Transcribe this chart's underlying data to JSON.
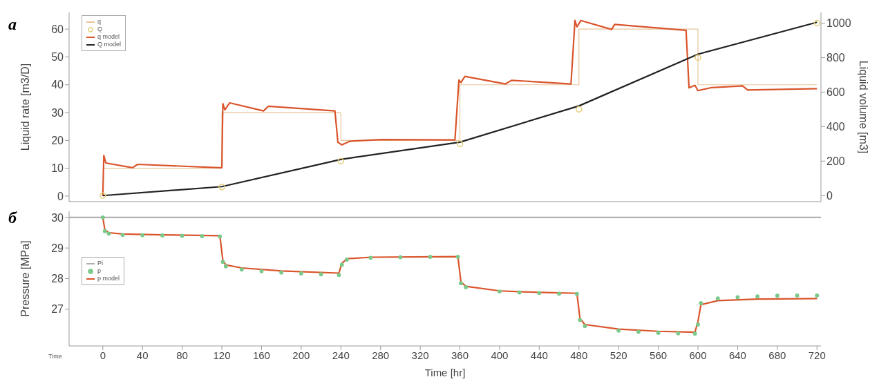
{
  "chart_data": [
    {
      "type": "line",
      "xlim": [
        -34,
        724
      ],
      "xticks": [
        0,
        40,
        80,
        120,
        160,
        200,
        240,
        280,
        320,
        360,
        400,
        440,
        480,
        520,
        560,
        600,
        640,
        680,
        720
      ],
      "ylim": [
        -2,
        66
      ],
      "yticks": [
        0,
        10,
        20,
        30,
        40,
        50,
        60
      ],
      "y2lim": [
        -35,
        1062
      ],
      "y2ticks": [
        0,
        200,
        400,
        600,
        800,
        1000
      ],
      "ylabel": "Liquid rate [m3/D]",
      "y2label": "Liquid volume [m3]",
      "tick_labels": "y",
      "legend": "top left",
      "annotations": [
        "а"
      ],
      "series": [
        {
          "name": "q",
          "type": "step",
          "color": "#e8c49a",
          "x": [
            0,
            120,
            240,
            360,
            480,
            600,
            720
          ],
          "values": [
            10,
            30,
            20,
            40,
            60,
            40,
            40
          ]
        },
        {
          "name": "Q",
          "type": "scatter",
          "marker": "circle",
          "axis": "y2",
          "color": "#e3cf7a",
          "x": [
            0,
            120,
            240,
            360,
            480,
            600,
            720
          ],
          "values": [
            0,
            50,
            200,
            300,
            500,
            800,
            1000
          ]
        },
        {
          "name": "q model",
          "type": "line",
          "color": "#d9542a",
          "x": [
            0,
            1,
            3,
            30,
            35,
            117,
            120,
            121,
            123,
            128,
            162,
            167,
            234,
            237,
            241,
            249,
            281,
            355,
            359,
            361,
            365,
            406,
            412,
            472,
            476,
            478,
            482,
            513,
            516,
            588,
            591,
            597,
            600,
            614,
            645,
            650,
            720
          ],
          "values": [
            0,
            14.6,
            11.9,
            10.2,
            11.4,
            10.2,
            10.2,
            33.2,
            31,
            33.5,
            30.6,
            32.3,
            30.6,
            19.3,
            18.4,
            19.7,
            20.3,
            20.2,
            41.7,
            40.8,
            43,
            40.3,
            41.6,
            40.3,
            63.1,
            60.8,
            63.1,
            59.9,
            61.7,
            59.6,
            38.9,
            39.8,
            37.9,
            39,
            39.6,
            38.1,
            38.6
          ]
        },
        {
          "name": "Q model",
          "type": "line",
          "axis": "y2",
          "color": "#222222",
          "x": [
            0,
            120,
            240,
            360,
            480,
            600,
            720
          ],
          "values": [
            0,
            52,
            210,
            310,
            520,
            820,
            1005
          ]
        }
      ]
    },
    {
      "type": "line",
      "xlim": [
        -34,
        724
      ],
      "xticks": [
        0,
        40,
        80,
        120,
        160,
        200,
        240,
        280,
        320,
        360,
        400,
        440,
        480,
        520,
        560,
        600,
        640,
        680,
        720
      ],
      "ylim": [
        25.8,
        30.2
      ],
      "yticks": [
        27,
        28,
        29,
        30
      ],
      "xlabel": "Time [hr]",
      "ylabel": "Pressure [MPa]",
      "legend": "top left",
      "annotations": [
        "б",
        "Time"
      ],
      "series": [
        {
          "name": "Pi",
          "type": "line",
          "color": "#b0b0b0",
          "x": [
            -34,
            724
          ],
          "values": [
            30,
            30
          ]
        },
        {
          "name": "p",
          "type": "scatter",
          "marker": "circle",
          "color": "#7ac98a",
          "x": [
            0,
            2,
            6,
            20,
            40,
            60,
            80,
            100,
            118,
            121,
            124,
            140,
            160,
            180,
            200,
            220,
            238,
            241,
            246,
            270,
            300,
            330,
            358,
            361,
            366,
            400,
            420,
            440,
            460,
            478,
            481,
            486,
            520,
            540,
            560,
            580,
            597,
            600,
            603,
            620,
            640,
            660,
            680,
            700,
            720
          ],
          "values": [
            30,
            29.55,
            29.47,
            29.43,
            29.42,
            29.41,
            29.4,
            29.39,
            29.38,
            28.55,
            28.4,
            28.3,
            28.24,
            28.2,
            28.17,
            28.14,
            28.12,
            28.45,
            28.62,
            28.68,
            28.7,
            28.71,
            28.71,
            27.85,
            27.72,
            27.58,
            27.55,
            27.53,
            27.51,
            27.5,
            26.65,
            26.45,
            26.3,
            26.26,
            26.23,
            26.21,
            26.2,
            26.5,
            27.2,
            27.35,
            27.39,
            27.42,
            27.44,
            27.45,
            27.45
          ]
        },
        {
          "name": "p model",
          "type": "line",
          "color": "#d9542a",
          "x": [
            0,
            2,
            6,
            20,
            60,
            118,
            121,
            124,
            140,
            180,
            238,
            241,
            246,
            270,
            358,
            361,
            366,
            400,
            440,
            478,
            481,
            486,
            520,
            560,
            597,
            600,
            603,
            620,
            660,
            720
          ],
          "values": [
            30,
            29.6,
            29.5,
            29.46,
            29.43,
            29.4,
            28.6,
            28.45,
            28.35,
            28.25,
            28.18,
            28.5,
            28.65,
            28.7,
            28.72,
            27.9,
            27.75,
            27.6,
            27.55,
            27.52,
            26.7,
            26.5,
            26.35,
            26.28,
            26.25,
            26.6,
            27.15,
            27.28,
            27.33,
            27.35
          ]
        }
      ]
    }
  ]
}
